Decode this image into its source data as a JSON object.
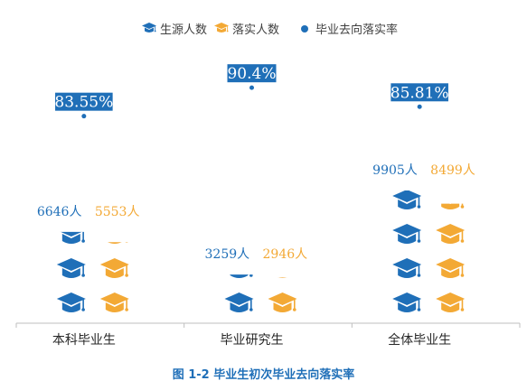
{
  "colors": {
    "blue": "#1f6fb8",
    "orange": "#f3a935",
    "axis": "#bfbfbf"
  },
  "legend": [
    {
      "label": "生源人数",
      "icon": "graduation-cap-icon",
      "color": "#1f6fb8"
    },
    {
      "label": "落实人数",
      "icon": "graduation-cap-icon",
      "color": "#f3a935"
    },
    {
      "label": "毕业去向落实率",
      "icon": "dot-marker-icon",
      "color": "#1f6fb8"
    }
  ],
  "caption": "图 1-2  毕业生初次毕业去向落实率",
  "chart_data": {
    "type": "bar",
    "categories": [
      "本科毕业生",
      "毕业研究生",
      "全体毕业生"
    ],
    "series": [
      {
        "name": "生源人数",
        "values": [
          6646,
          3259,
          9905
        ],
        "labels": [
          "6646人",
          "3259人",
          "9905人"
        ]
      },
      {
        "name": "落实人数",
        "values": [
          5553,
          2946,
          8499
        ],
        "labels": [
          "5553人",
          "2946人",
          "8499人"
        ]
      },
      {
        "name": "毕业去向落实率",
        "values": [
          83.55,
          90.4,
          85.81
        ],
        "labels": [
          "83.55%",
          "90.4%",
          "85.81%"
        ]
      }
    ],
    "pictograph_unit": 2500,
    "legend_position": "top",
    "grid": false
  }
}
